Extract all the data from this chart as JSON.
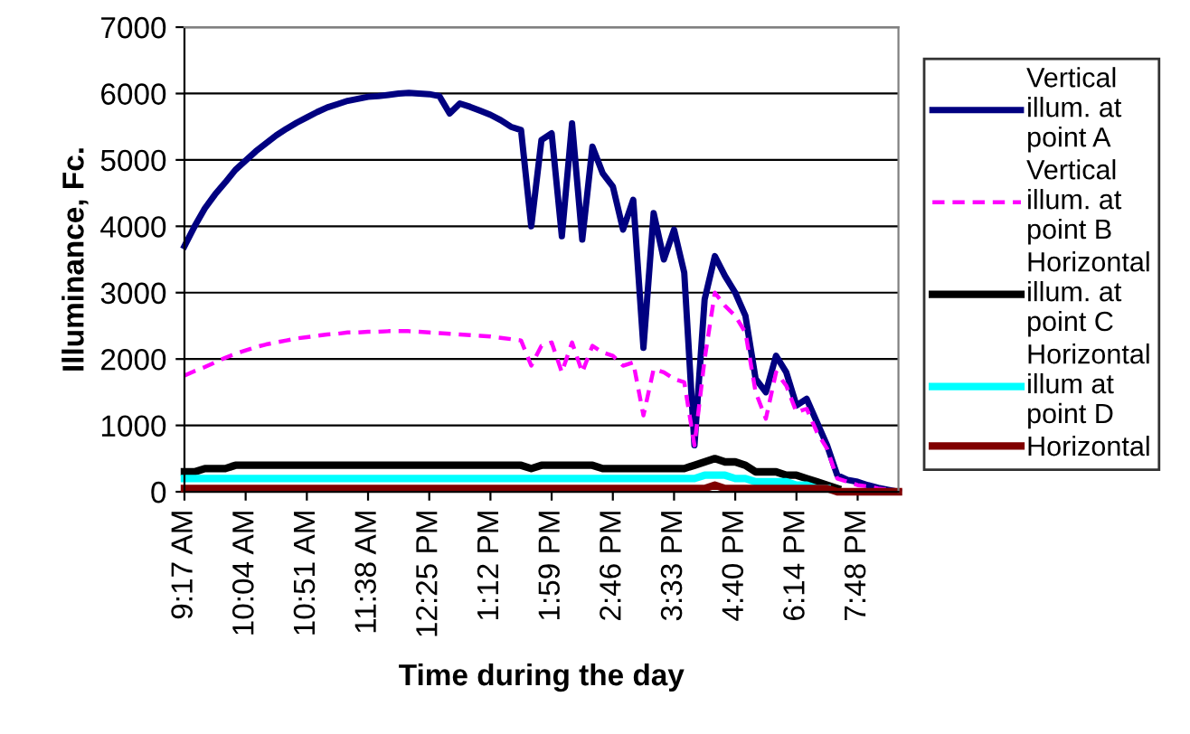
{
  "chart_data": {
    "type": "line",
    "xlabel": "Time during the day",
    "ylabel": "Illuminance, Fc.",
    "categories": [
      "9:17 AM",
      null,
      null,
      null,
      null,
      null,
      "10:04 AM",
      null,
      null,
      null,
      null,
      null,
      "10:51 AM",
      null,
      null,
      null,
      null,
      null,
      "11:38 AM",
      null,
      null,
      null,
      null,
      null,
      "12:25 PM",
      null,
      null,
      null,
      null,
      null,
      "1:12 PM",
      null,
      null,
      null,
      null,
      null,
      "1:59 PM",
      null,
      null,
      null,
      null,
      null,
      "2:46 PM",
      null,
      null,
      null,
      null,
      null,
      "3:33 PM",
      null,
      null,
      null,
      null,
      null,
      "4:40 PM",
      null,
      null,
      null,
      null,
      null,
      "6:14 PM",
      null,
      null,
      null,
      null,
      null,
      "7:48 PM",
      null,
      null,
      null,
      null
    ],
    "series": [
      {
        "name": "Vertical illum. at point A",
        "color": "#000080",
        "line_style": "solid",
        "values": [
          3700,
          4000,
          4270,
          4480,
          4660,
          4850,
          4990,
          5130,
          5250,
          5370,
          5470,
          5560,
          5640,
          5720,
          5790,
          5840,
          5890,
          5920,
          5950,
          5960,
          5980,
          6000,
          6010,
          6000,
          5990,
          5960,
          5700,
          5850,
          5800,
          5740,
          5680,
          5600,
          5500,
          5450,
          4000,
          5300,
          5400,
          3850,
          5550,
          3800,
          5200,
          4800,
          4600,
          3950,
          4400,
          2170,
          4200,
          3500,
          3950,
          3300,
          700,
          2900,
          3550,
          3250,
          3000,
          2650,
          1700,
          1500,
          2050,
          1800,
          1300,
          1400,
          1050,
          700,
          250,
          180,
          150,
          100,
          60,
          30,
          0
        ]
      },
      {
        "name": "Vertical illum. at point B",
        "color": "#ff00ff",
        "line_style": "dashed",
        "values": [
          1750,
          1820,
          1880,
          1950,
          2020,
          2080,
          2130,
          2180,
          2220,
          2250,
          2280,
          2310,
          2330,
          2350,
          2370,
          2380,
          2400,
          2400,
          2410,
          2410,
          2420,
          2420,
          2420,
          2410,
          2400,
          2390,
          2380,
          2370,
          2360,
          2350,
          2340,
          2320,
          2300,
          2280,
          1900,
          2200,
          2250,
          1800,
          2250,
          1800,
          2200,
          2100,
          2050,
          1900,
          1950,
          1150,
          1850,
          1800,
          1700,
          1650,
          700,
          2000,
          3000,
          2800,
          2650,
          2400,
          1500,
          1100,
          1800,
          1600,
          1200,
          1250,
          900,
          650,
          200,
          150,
          100,
          80,
          50,
          30,
          0
        ]
      },
      {
        "name": "Horizontal illum. at point C",
        "color": "#000000",
        "line_style": "solid",
        "values": [
          300,
          300,
          350,
          350,
          350,
          400,
          400,
          400,
          400,
          400,
          400,
          400,
          400,
          400,
          400,
          400,
          400,
          400,
          400,
          400,
          400,
          400,
          400,
          400,
          400,
          400,
          400,
          400,
          400,
          400,
          400,
          400,
          400,
          400,
          350,
          400,
          400,
          400,
          400,
          400,
          400,
          350,
          350,
          350,
          350,
          350,
          350,
          350,
          350,
          350,
          400,
          450,
          500,
          450,
          450,
          400,
          300,
          300,
          300,
          250,
          250,
          200,
          150,
          100,
          50,
          null,
          null,
          null,
          null,
          null,
          null
        ]
      },
      {
        "name": "Horizontal illum at point D",
        "color": "#00ffff",
        "line_style": "solid",
        "values": [
          200,
          200,
          200,
          200,
          200,
          200,
          200,
          200,
          200,
          200,
          200,
          200,
          200,
          200,
          200,
          200,
          200,
          200,
          200,
          200,
          200,
          200,
          200,
          200,
          200,
          200,
          200,
          200,
          200,
          200,
          200,
          200,
          200,
          200,
          200,
          200,
          200,
          200,
          200,
          200,
          200,
          200,
          200,
          200,
          200,
          200,
          200,
          200,
          200,
          200,
          200,
          250,
          250,
          250,
          200,
          200,
          150,
          150,
          150,
          150,
          100,
          100,
          50,
          50,
          null,
          null,
          null,
          null,
          null,
          null,
          null
        ]
      },
      {
        "name": "Horizontal",
        "color": "#800000",
        "line_style": "solid",
        "values": [
          50,
          50,
          50,
          50,
          50,
          50,
          50,
          50,
          50,
          50,
          50,
          50,
          50,
          50,
          50,
          50,
          50,
          50,
          50,
          50,
          50,
          50,
          50,
          50,
          50,
          50,
          50,
          50,
          50,
          50,
          50,
          50,
          50,
          50,
          50,
          50,
          50,
          50,
          50,
          50,
          50,
          50,
          50,
          50,
          50,
          50,
          50,
          50,
          50,
          50,
          50,
          50,
          100,
          50,
          50,
          50,
          50,
          50,
          50,
          50,
          50,
          50,
          50,
          50,
          0,
          0,
          0,
          0,
          0,
          0,
          0
        ]
      }
    ],
    "ylim": [
      0,
      7000
    ],
    "yticks": [
      0,
      1000,
      2000,
      3000,
      4000,
      5000,
      6000,
      7000
    ],
    "grid": "y",
    "legend": "right"
  }
}
